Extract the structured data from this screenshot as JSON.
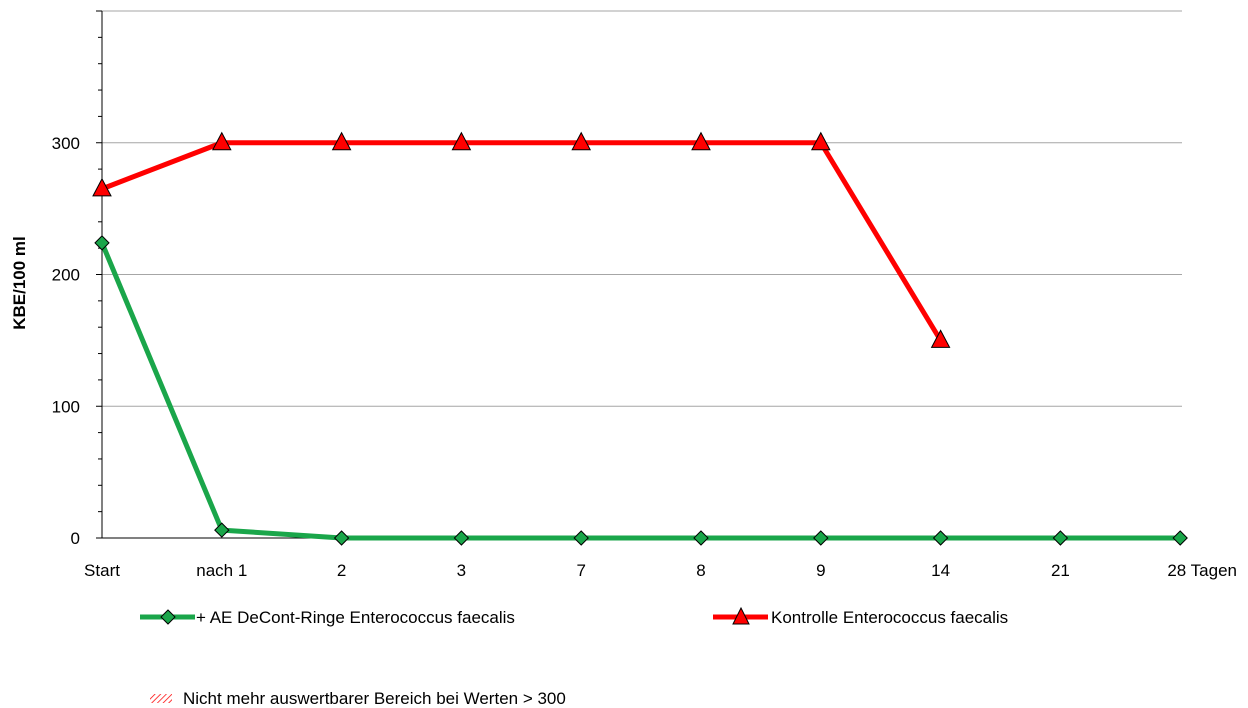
{
  "chart_data": {
    "type": "line",
    "title": "",
    "xlabel": "",
    "ylabel": "KBE/100 ml",
    "categories": [
      "Start",
      "nach 1",
      "2",
      "3",
      "7",
      "8",
      "9",
      "14",
      "21",
      "28 Tagen"
    ],
    "ylim": [
      0,
      400
    ],
    "yticks": [
      0,
      100,
      200,
      300
    ],
    "grid": true,
    "legend_position": "bottom",
    "series": [
      {
        "name": "+ AE DeCont-Ringe Enterococcus faecalis",
        "values": [
          224,
          6,
          0,
          0,
          0,
          0,
          0,
          0,
          0,
          0
        ],
        "color": "#1aa64a",
        "marker": "diamond"
      },
      {
        "name": "Kontrolle Enterococcus faecalis",
        "values": [
          265,
          300,
          300,
          300,
          300,
          300,
          300,
          150,
          null,
          null
        ],
        "color": "#ff0000",
        "marker": "triangle"
      }
    ],
    "note": {
      "label": "Nicht mehr auswertbarer Bereich bei Werten > 300",
      "hatch_color": "#ff0000"
    }
  }
}
